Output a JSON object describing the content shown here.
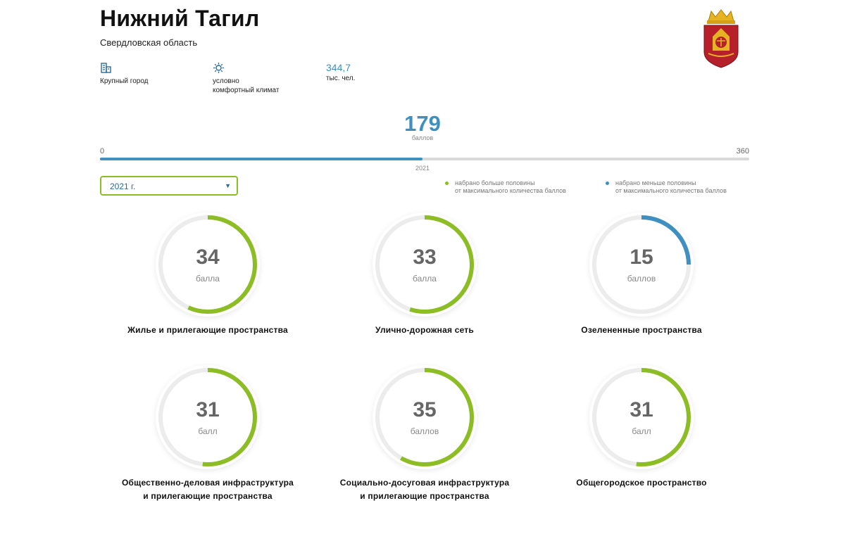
{
  "city": {
    "name": "Нижний Тагил",
    "region": "Свердловская область"
  },
  "facts": {
    "size_label": "Крупный город",
    "climate_label_line1": "условно",
    "climate_label_line2": "комфортный климат",
    "population_value": "344,7",
    "population_unit": "тыс. чел."
  },
  "total": {
    "score": "179",
    "unit": "баллов",
    "min": "0",
    "max": "360",
    "year_mark": "2021",
    "fraction": 0.497
  },
  "year_select": {
    "value": "2021 г."
  },
  "legend": {
    "above_line1": "набрано больше половины",
    "above_line2": "от максимального количества баллов",
    "below_line1": "набрано меньше половины",
    "below_line2": "от максимального количества баллов"
  },
  "colors": {
    "above_half": "#8cbd25",
    "below_half": "#3f8fc0",
    "track": "#ececec"
  },
  "indicators": [
    {
      "score": "34",
      "unit": "балла",
      "label_line1": "Жилье и прилегающие пространства",
      "label_line2": "",
      "fraction": 0.567
    },
    {
      "score": "33",
      "unit": "балла",
      "label_line1": "Улично-дорожная сеть",
      "label_line2": "",
      "fraction": 0.55
    },
    {
      "score": "15",
      "unit": "баллов",
      "label_line1": "Озелененные пространства",
      "label_line2": "",
      "fraction": 0.25
    },
    {
      "score": "31",
      "unit": "балл",
      "label_line1": "Общественно-деловая инфраструктура",
      "label_line2": "и прилегающие пространства",
      "fraction": 0.517
    },
    {
      "score": "35",
      "unit": "баллов",
      "label_line1": "Социально-досуговая инфраструктура",
      "label_line2": "и прилегающие пространства",
      "fraction": 0.583
    },
    {
      "score": "31",
      "unit": "балл",
      "label_line1": "Общегородское пространство",
      "label_line2": "",
      "fraction": 0.517
    }
  ]
}
